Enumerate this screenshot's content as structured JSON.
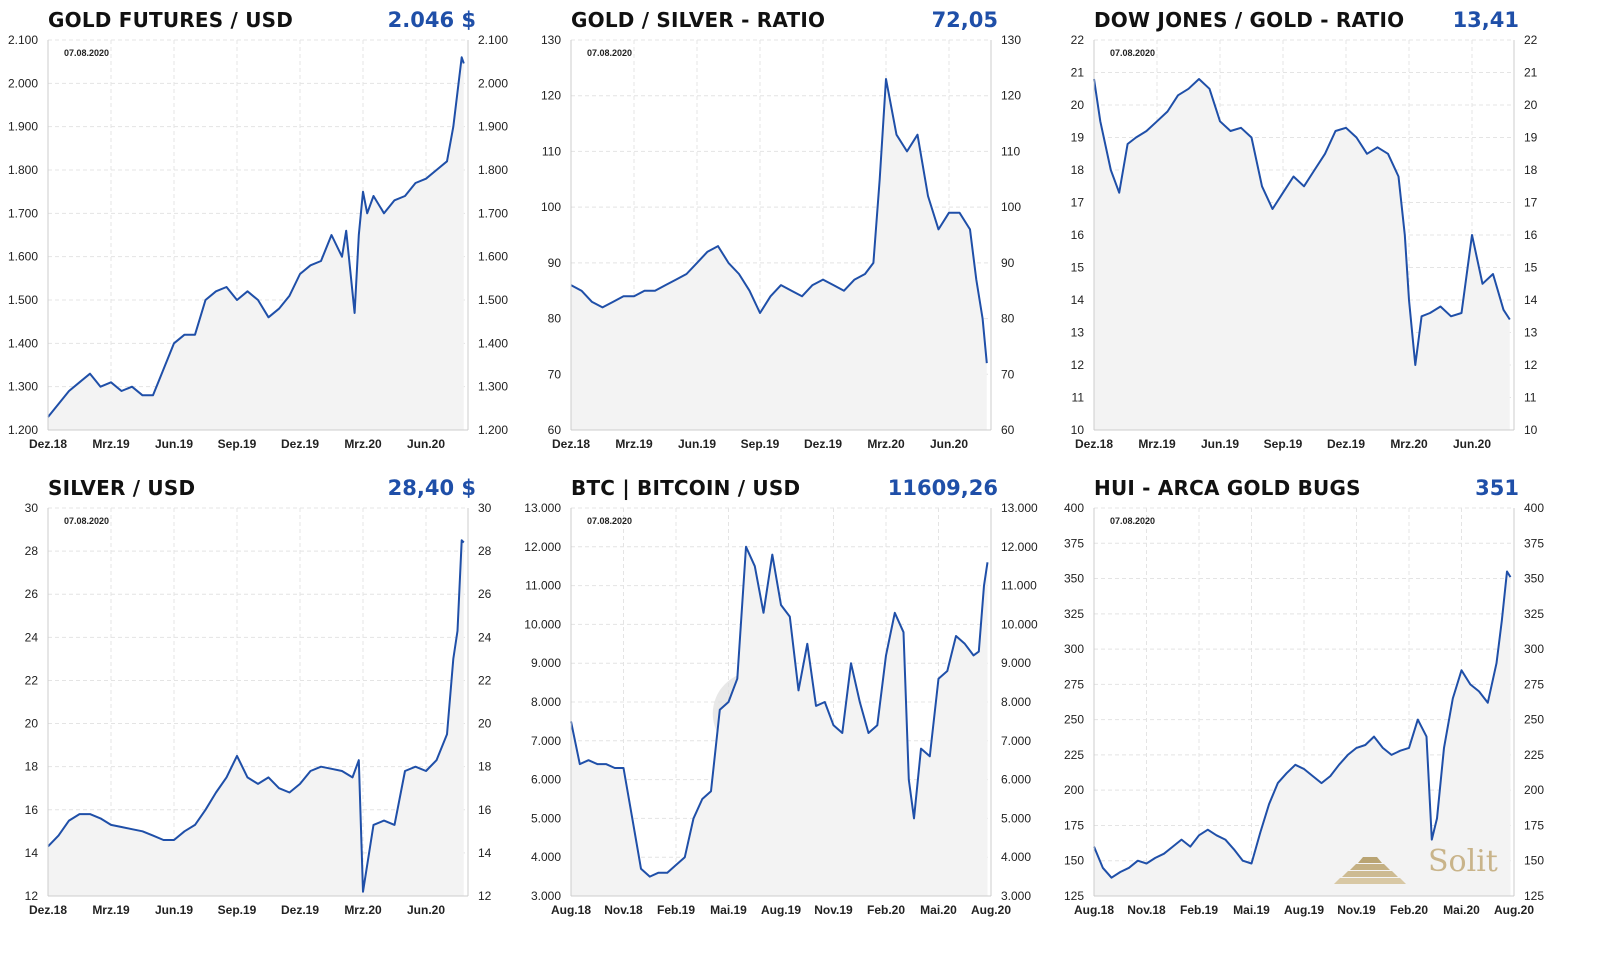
{
  "panels": [
    {
      "id": "gold",
      "title": "GOLD FUTURES / USD",
      "value": "2.046 $",
      "date": "07.08.2020",
      "chart_data": {
        "type": "area",
        "title": "GOLD FUTURES / USD",
        "ylim": [
          1200,
          2100
        ],
        "yticks": [
          1200,
          1300,
          1400,
          1500,
          1600,
          1700,
          1800,
          1900,
          2000,
          2100
        ],
        "ytick_labels": [
          "1.200",
          "1.300",
          "1.400",
          "1.500",
          "1.600",
          "1.700",
          "1.800",
          "1.900",
          "2.000",
          "2.100"
        ],
        "xlim": [
          0,
          20
        ],
        "xticks": [
          0,
          3,
          6,
          9,
          12,
          15,
          18
        ],
        "xtick_labels": [
          "Dez.18",
          "Mrz.19",
          "Jun.19",
          "Sep.19",
          "Dez.19",
          "Mrz.20",
          "Jun.20"
        ],
        "grid": true,
        "x": [
          0,
          0.5,
          1,
          1.5,
          2,
          2.5,
          3,
          3.5,
          4,
          4.5,
          5,
          5.5,
          6,
          6.5,
          7,
          7.5,
          8,
          8.5,
          9,
          9.5,
          10,
          10.5,
          11,
          11.5,
          12,
          12.5,
          13,
          13.5,
          14,
          14.2,
          14.6,
          14.8,
          15,
          15.2,
          15.5,
          16,
          16.5,
          17,
          17.5,
          18,
          18.5,
          19,
          19.3,
          19.5,
          19.7,
          19.8
        ],
        "y": [
          1230,
          1260,
          1290,
          1310,
          1330,
          1300,
          1310,
          1290,
          1300,
          1280,
          1280,
          1340,
          1400,
          1420,
          1420,
          1500,
          1520,
          1530,
          1500,
          1520,
          1500,
          1460,
          1480,
          1510,
          1560,
          1580,
          1590,
          1650,
          1600,
          1660,
          1470,
          1650,
          1750,
          1700,
          1740,
          1700,
          1730,
          1740,
          1770,
          1780,
          1800,
          1820,
          1900,
          1980,
          2060,
          2046
        ]
      }
    },
    {
      "id": "gsr",
      "title": "GOLD / SILVER - RATIO",
      "value": "72,05",
      "date": "07.08.2020",
      "chart_data": {
        "type": "area",
        "title": "GOLD / SILVER - RATIO",
        "ylim": [
          60,
          130
        ],
        "yticks": [
          60,
          70,
          80,
          90,
          100,
          110,
          120,
          130
        ],
        "ytick_labels": [
          "60",
          "70",
          "80",
          "90",
          "100",
          "110",
          "120",
          "130"
        ],
        "xlim": [
          0,
          20
        ],
        "xticks": [
          0,
          3,
          6,
          9,
          12,
          15,
          18
        ],
        "xtick_labels": [
          "Dez.18",
          "Mrz.19",
          "Jun.19",
          "Sep.19",
          "Dez.19",
          "Mrz.20",
          "Jun.20"
        ],
        "grid": true,
        "x": [
          0,
          0.5,
          1,
          1.5,
          2,
          2.5,
          3,
          3.5,
          4,
          4.5,
          5,
          5.5,
          6,
          6.5,
          7,
          7.5,
          8,
          8.5,
          9,
          9.5,
          10,
          10.5,
          11,
          11.5,
          12,
          12.5,
          13,
          13.5,
          14,
          14.4,
          14.7,
          15,
          15.5,
          16,
          16.5,
          17,
          17.5,
          18,
          18.5,
          19,
          19.3,
          19.6,
          19.8
        ],
        "y": [
          86,
          85,
          83,
          82,
          83,
          84,
          84,
          85,
          85,
          86,
          87,
          88,
          90,
          92,
          93,
          90,
          88,
          85,
          81,
          84,
          86,
          85,
          84,
          86,
          87,
          86,
          85,
          87,
          88,
          90,
          105,
          123,
          113,
          110,
          113,
          102,
          96,
          99,
          99,
          96,
          87,
          80,
          72
        ]
      }
    },
    {
      "id": "djg",
      "title": "DOW JONES / GOLD - RATIO",
      "value": "13,41",
      "date": "07.08.2020",
      "chart_data": {
        "type": "area",
        "title": "DOW JONES / GOLD - RATIO",
        "ylim": [
          10,
          22
        ],
        "yticks": [
          10,
          11,
          12,
          13,
          14,
          15,
          16,
          17,
          18,
          19,
          20,
          21,
          22
        ],
        "ytick_labels": [
          "10",
          "11",
          "12",
          "13",
          "14",
          "15",
          "16",
          "17",
          "18",
          "19",
          "20",
          "21",
          "22"
        ],
        "xlim": [
          0,
          20
        ],
        "xticks": [
          0,
          3,
          6,
          9,
          12,
          15,
          18
        ],
        "xtick_labels": [
          "Dez.18",
          "Mrz.19",
          "Jun.19",
          "Sep.19",
          "Dez.19",
          "Mrz.20",
          "Jun.20"
        ],
        "grid": true,
        "x": [
          0,
          0.3,
          0.8,
          1.2,
          1.6,
          2,
          2.5,
          3,
          3.5,
          4,
          4.5,
          5,
          5.5,
          6,
          6.5,
          7,
          7.5,
          8,
          8.5,
          9,
          9.5,
          10,
          10.5,
          11,
          11.5,
          12,
          12.5,
          13,
          13.5,
          14,
          14.5,
          14.8,
          15,
          15.3,
          15.6,
          16,
          16.5,
          17,
          17.5,
          18,
          18.5,
          19,
          19.5,
          19.8
        ],
        "y": [
          20.8,
          19.5,
          18,
          17.3,
          18.8,
          19,
          19.2,
          19.5,
          19.8,
          20.3,
          20.5,
          20.8,
          20.5,
          19.5,
          19.2,
          19.3,
          19,
          17.5,
          16.8,
          17.3,
          17.8,
          17.5,
          18,
          18.5,
          19.2,
          19.3,
          19,
          18.5,
          18.7,
          18.5,
          17.8,
          16,
          14,
          12,
          13.5,
          13.6,
          13.8,
          13.5,
          13.6,
          16,
          14.5,
          14.8,
          13.7,
          13.4
        ]
      }
    },
    {
      "id": "silver",
      "title": "SILVER / USD",
      "value": "28,40 $",
      "date": "07.08.2020",
      "chart_data": {
        "type": "area",
        "title": "SILVER / USD",
        "ylim": [
          12,
          30
        ],
        "yticks": [
          12,
          14,
          16,
          18,
          20,
          22,
          24,
          26,
          28,
          30
        ],
        "ytick_labels": [
          "12",
          "14",
          "16",
          "18",
          "20",
          "22",
          "24",
          "26",
          "28",
          "30"
        ],
        "xlim": [
          0,
          20
        ],
        "xticks": [
          0,
          3,
          6,
          9,
          12,
          15,
          18
        ],
        "xtick_labels": [
          "Dez.18",
          "Mrz.19",
          "Jun.19",
          "Sep.19",
          "Dez.19",
          "Mrz.20",
          "Jun.20"
        ],
        "grid": true,
        "x": [
          0,
          0.5,
          1,
          1.5,
          2,
          2.5,
          3,
          3.5,
          4,
          4.5,
          5,
          5.5,
          6,
          6.5,
          7,
          7.5,
          8,
          8.5,
          9,
          9.5,
          10,
          10.5,
          11,
          11.5,
          12,
          12.5,
          13,
          13.5,
          14,
          14.5,
          14.8,
          15,
          15.5,
          16,
          16.5,
          17,
          17.5,
          18,
          18.5,
          19,
          19.3,
          19.5,
          19.7,
          19.8
        ],
        "y": [
          14.3,
          14.8,
          15.5,
          15.8,
          15.8,
          15.6,
          15.3,
          15.2,
          15.1,
          15,
          14.8,
          14.6,
          14.6,
          15,
          15.3,
          16,
          16.8,
          17.5,
          18.5,
          17.5,
          17.2,
          17.5,
          17,
          16.8,
          17.2,
          17.8,
          18,
          17.9,
          17.8,
          17.5,
          18.3,
          12.2,
          15.3,
          15.5,
          15.3,
          17.8,
          18,
          17.8,
          18.3,
          19.5,
          23,
          24.3,
          28.5,
          28.4
        ]
      }
    },
    {
      "id": "btc",
      "title": "BTC | BITCOIN / USD",
      "value": "11609,26",
      "date": "07.08.2020",
      "chart_data": {
        "type": "area",
        "title": "BTC | BITCOIN / USD",
        "ylim": [
          3000,
          13000
        ],
        "yticks": [
          3000,
          4000,
          5000,
          6000,
          7000,
          8000,
          9000,
          10000,
          11000,
          12000,
          13000
        ],
        "ytick_labels": [
          "3.000",
          "4.000",
          "5.000",
          "6.000",
          "7.000",
          "8.000",
          "9.000",
          "10.000",
          "11.000",
          "12.000",
          "13.000"
        ],
        "xlim": [
          0,
          24
        ],
        "xticks": [
          0,
          3,
          6,
          9,
          12,
          15,
          18,
          21,
          24
        ],
        "xtick_labels": [
          "Aug.18",
          "Nov.18",
          "Feb.19",
          "Mai.19",
          "Aug.19",
          "Nov.19",
          "Feb.20",
          "Mai.20",
          "Aug.20"
        ],
        "grid": true,
        "x": [
          0,
          0.5,
          1,
          1.5,
          2,
          2.5,
          3,
          3.5,
          4,
          4.5,
          5,
          5.5,
          6,
          6.5,
          7,
          7.5,
          8,
          8.5,
          9,
          9.5,
          10,
          10.5,
          11,
          11.5,
          12,
          12.5,
          13,
          13.5,
          14,
          14.5,
          15,
          15.5,
          16,
          16.5,
          17,
          17.5,
          18,
          18.5,
          19,
          19.3,
          19.6,
          20,
          20.5,
          21,
          21.5,
          22,
          22.5,
          23,
          23.3,
          23.6,
          23.8
        ],
        "y": [
          7500,
          6400,
          6500,
          6400,
          6400,
          6300,
          6300,
          5000,
          3700,
          3500,
          3600,
          3600,
          3800,
          4000,
          5000,
          5500,
          5700,
          7800,
          8000,
          8600,
          12000,
          11500,
          10300,
          11800,
          10500,
          10200,
          8300,
          9500,
          7900,
          8000,
          7400,
          7200,
          9000,
          8000,
          7200,
          7400,
          9200,
          10300,
          9800,
          6000,
          5000,
          6800,
          6600,
          8600,
          8800,
          9700,
          9500,
          9200,
          9300,
          11000,
          11600
        ]
      }
    },
    {
      "id": "hui",
      "title": "HUI - ARCA GOLD BUGS",
      "value": "351",
      "date": "07.08.2020",
      "chart_data": {
        "type": "area",
        "title": "HUI - ARCA GOLD BUGS",
        "ylim": [
          125,
          400
        ],
        "yticks": [
          125,
          150,
          175,
          200,
          225,
          250,
          275,
          300,
          325,
          350,
          375,
          400
        ],
        "ytick_labels": [
          "125",
          "150",
          "175",
          "200",
          "225",
          "250",
          "275",
          "300",
          "325",
          "350",
          "375",
          "400"
        ],
        "xlim": [
          0,
          24
        ],
        "xticks": [
          0,
          3,
          6,
          9,
          12,
          15,
          18,
          21,
          24
        ],
        "xtick_labels": [
          "Aug.18",
          "Nov.18",
          "Feb.19",
          "Mai.19",
          "Aug.19",
          "Nov.19",
          "Feb.20",
          "Mai.20",
          "Aug.20"
        ],
        "grid": true,
        "x": [
          0,
          0.5,
          1,
          1.5,
          2,
          2.5,
          3,
          3.5,
          4,
          4.5,
          5,
          5.5,
          6,
          6.5,
          7,
          7.5,
          8,
          8.5,
          9,
          9.5,
          10,
          10.5,
          11,
          11.5,
          12,
          12.5,
          13,
          13.5,
          14,
          14.5,
          15,
          15.5,
          16,
          16.5,
          17,
          17.5,
          18,
          18.5,
          19,
          19.3,
          19.6,
          20,
          20.5,
          21,
          21.5,
          22,
          22.5,
          23,
          23.3,
          23.6,
          23.8
        ],
        "y": [
          160,
          145,
          138,
          142,
          145,
          150,
          148,
          152,
          155,
          160,
          165,
          160,
          168,
          172,
          168,
          165,
          158,
          150,
          148,
          170,
          190,
          205,
          212,
          218,
          215,
          210,
          205,
          210,
          218,
          225,
          230,
          232,
          238,
          230,
          225,
          228,
          230,
          250,
          238,
          165,
          180,
          230,
          265,
          285,
          275,
          270,
          262,
          290,
          320,
          355,
          351
        ]
      }
    }
  ],
  "logo": {
    "text": "Solit",
    "icon": "stacked-gold-bars-icon",
    "color": "#c9b48a"
  },
  "watermark": {
    "icon": "bitcoin-icon"
  },
  "colors": {
    "line": "#1f4fa8",
    "fill": "#f3f3f3",
    "value": "#1f4fa8",
    "grid": "#e4e4e4"
  }
}
